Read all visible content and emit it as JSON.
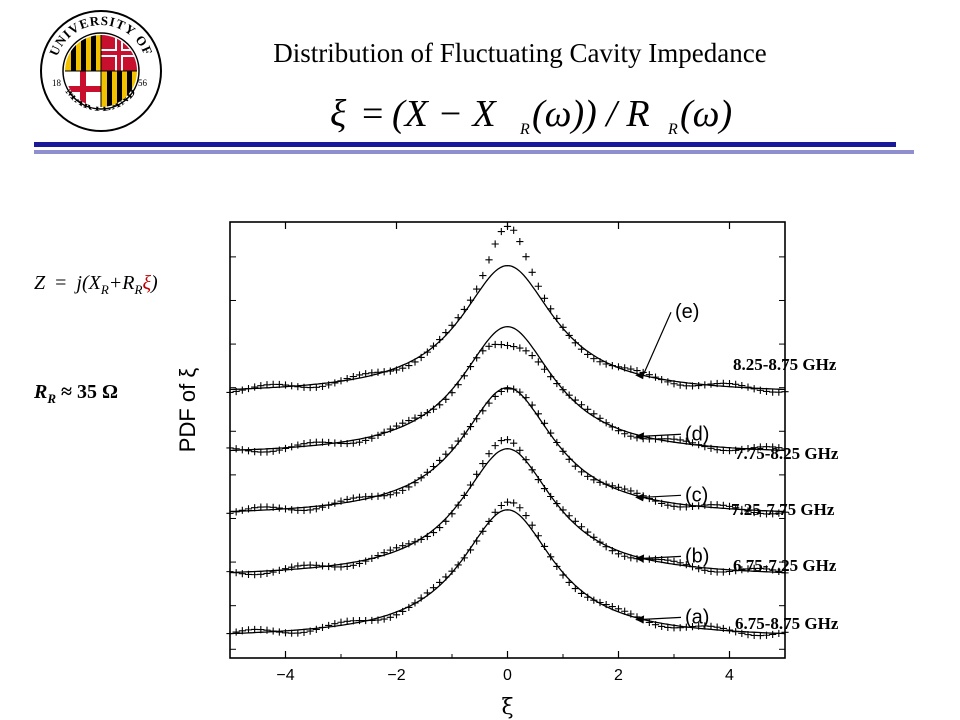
{
  "title": "Distribution of Fluctuating Cavity Impedance",
  "logo": {
    "text_top": "UNIVERSITY OF",
    "text_bottom": "MARYLAND",
    "year_left": "18",
    "year_right": "56"
  },
  "formula": {
    "xi": "ξ",
    "equals": "=",
    "numerator": "(X − X",
    "numerator_sub": "R",
    "omega1": "(ω)) / R",
    "denom_sub": "R",
    "omega2": "(ω)"
  },
  "impedance_eq": {
    "lhs": "Z",
    "eq": "=",
    "j": "j(X",
    "sub1": "R",
    "plus": "+R",
    "sub2": "R",
    "xi": "ξ",
    "close": ")"
  },
  "rr_value": {
    "symbol": "R",
    "sub": "R",
    "rest": "≈ 35 Ω"
  },
  "colors": {
    "rule_dark": "#1a1a99",
    "rule_light": "#8f8fcf",
    "xi_red": "#c00000",
    "logo_red": "#c8102e",
    "logo_gold": "#f2c200"
  },
  "chart_data": {
    "type": "scatter",
    "xlabel": "ξ",
    "ylabel": "PDF of ξ",
    "xlim": [
      -5,
      5
    ],
    "xticks": [
      -4,
      -2,
      0,
      2,
      4
    ],
    "xtick_labels": [
      "−4",
      "−2",
      "0",
      "2",
      "4"
    ],
    "grid": false,
    "series": [
      {
        "label": "(a)",
        "range": "6.75-8.75 GHz",
        "offset": 0.0,
        "fit_peak": 0.74,
        "data_peak": 0.78
      },
      {
        "label": "(b)",
        "range": "6.75-7.25 GHz",
        "offset": 0.35,
        "fit_peak": 0.74,
        "data_peak": 0.79
      },
      {
        "label": "(c)",
        "range": "7.25-7.75 GHz",
        "offset": 0.7,
        "fit_peak": 0.74,
        "data_peak": 0.74
      },
      {
        "label": "(d)",
        "range": "7.75-8.25 GHz",
        "offset": 1.05,
        "fit_peak": 0.74,
        "data_peak": 0.62
      },
      {
        "label": "(e)",
        "range": "8.25-8.75 GHz",
        "offset": 1.4,
        "fit_peak": 0.74,
        "data_peak": 0.98
      }
    ]
  }
}
